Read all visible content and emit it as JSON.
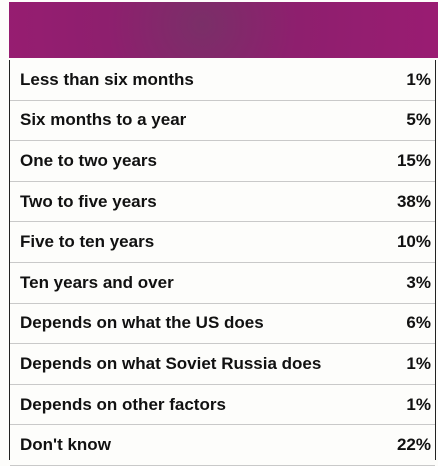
{
  "table": {
    "rows": [
      [
        "Less than six months",
        "1%"
      ],
      [
        "Six months to a year",
        "5%"
      ],
      [
        "One to two years",
        "15%"
      ],
      [
        "Two to five years",
        "38%"
      ],
      [
        "Five to ten years",
        "10%"
      ],
      [
        "Ten years and over",
        "3%"
      ],
      [
        "Depends on what the US does",
        "6%"
      ],
      [
        "Depends on what Soviet Russia does",
        "1%"
      ],
      [
        "Depends on other factors",
        "1%"
      ],
      [
        "Don't know",
        "22%"
      ]
    ]
  }
}
